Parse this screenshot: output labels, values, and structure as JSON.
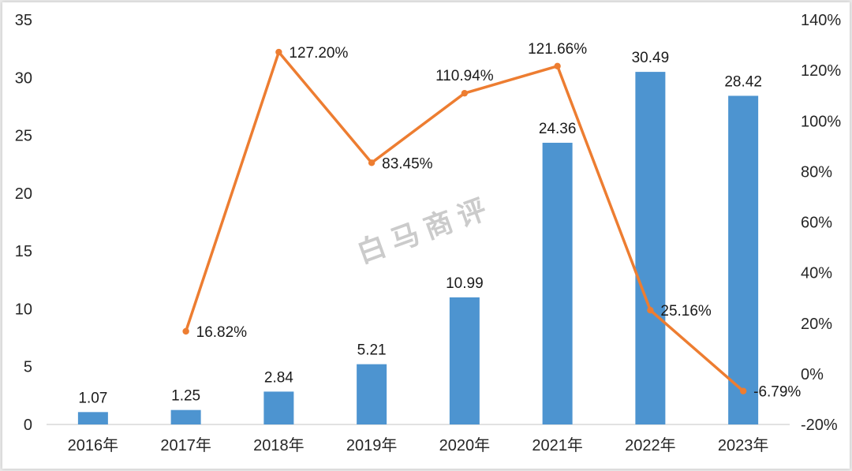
{
  "chart_data": {
    "type": "combo",
    "categories": [
      "2016年",
      "2017年",
      "2018年",
      "2019年",
      "2020年",
      "2021年",
      "2022年",
      "2023年"
    ],
    "series": [
      {
        "name": "bar-series",
        "type": "bar",
        "axis": "left",
        "values": [
          1.07,
          1.25,
          2.84,
          5.21,
          10.99,
          24.36,
          30.49,
          28.42
        ],
        "labels": [
          "1.07",
          "1.25",
          "2.84",
          "5.21",
          "10.99",
          "24.36",
          "30.49",
          "28.42"
        ],
        "color": "#4d94d0"
      },
      {
        "name": "growth-line-series",
        "type": "line",
        "axis": "right",
        "values": [
          null,
          16.82,
          127.2,
          83.45,
          110.94,
          121.66,
          25.16,
          -6.79
        ],
        "labels": [
          "",
          "16.82%",
          "127.20%",
          "83.45%",
          "110.94%",
          "121.66%",
          "25.16%",
          "-6.79%"
        ],
        "label_positions": [
          null,
          "right",
          "right",
          "right",
          "above",
          "above",
          "right",
          "right"
        ],
        "color": "#ED7D31"
      }
    ],
    "left_axis": {
      "min": 0,
      "max": 35,
      "step": 5,
      "ticks": [
        "0",
        "5",
        "10",
        "15",
        "20",
        "25",
        "30",
        "35"
      ]
    },
    "right_axis": {
      "min": -20,
      "max": 140,
      "step": 20,
      "ticks": [
        "-20%",
        "0%",
        "20%",
        "40%",
        "60%",
        "80%",
        "100%",
        "120%",
        "140%"
      ]
    },
    "grid": false,
    "legend": "none",
    "title": "",
    "watermark": "白马商评",
    "colors": {
      "bar": "#4d94d0",
      "line": "#ED7D31",
      "text": "#262626",
      "data_label": "#1a1a1a",
      "watermark": "#c9c9c9",
      "baseline": "#d9d9d9"
    }
  }
}
